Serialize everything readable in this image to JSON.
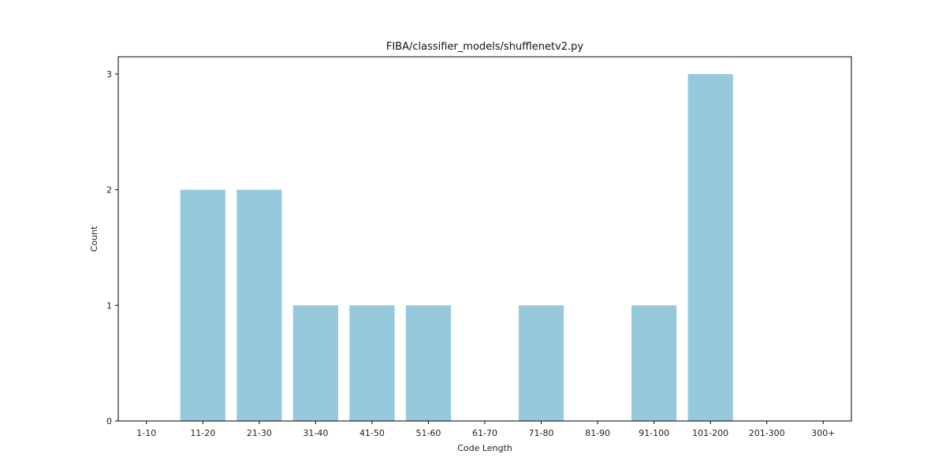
{
  "chart_data": {
    "type": "bar",
    "title": "FIBA/classifier_models/shufflenetv2.py",
    "xlabel": "Code Length",
    "ylabel": "Count",
    "categories": [
      "1-10",
      "11-20",
      "21-30",
      "31-40",
      "41-50",
      "51-60",
      "61-70",
      "71-80",
      "81-90",
      "91-100",
      "101-200",
      "201-300",
      "300+"
    ],
    "values": [
      0,
      2,
      2,
      1,
      1,
      1,
      0,
      1,
      0,
      1,
      3,
      0,
      0
    ],
    "ylim": [
      0,
      3.15
    ],
    "yticks": [
      0,
      1,
      2,
      3
    ],
    "bar_color": "#96c9dc",
    "grid": false,
    "legend": "none"
  }
}
